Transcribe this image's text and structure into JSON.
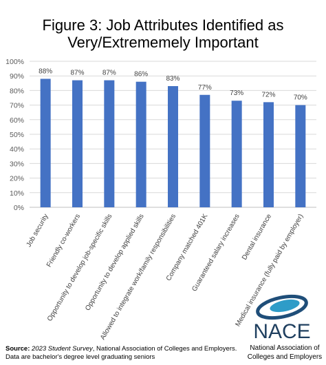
{
  "chart_data": {
    "type": "bar",
    "title_lines": [
      "Figure 3: Job Attributes Identified as",
      "Very/Extrememely Important"
    ],
    "categories": [
      "Job security",
      "Friendly co-workers",
      "Opportunity to develop job-specific skills",
      "Opportunity to develop applied skills",
      "Allowed to integrate work/family responsibilities",
      "Company matched 401K",
      "Guaranteed salary increases",
      "Dental insurance",
      "Medical insurance (fully paid by employer)"
    ],
    "values": [
      88,
      87,
      87,
      86,
      83,
      77,
      73,
      72,
      70
    ],
    "value_labels": [
      "88%",
      "87%",
      "87%",
      "86%",
      "83%",
      "77%",
      "73%",
      "72%",
      "70%"
    ],
    "color": "#4472c4",
    "ylim": [
      0,
      100
    ],
    "yticks": [
      {
        "value": 0,
        "label": "0%"
      },
      {
        "value": 10,
        "label": "10%"
      },
      {
        "value": 20,
        "label": "20%"
      },
      {
        "value": 30,
        "label": "30%"
      },
      {
        "value": 40,
        "label": "40%"
      },
      {
        "value": 50,
        "label": "50%"
      },
      {
        "value": 60,
        "label": "60%"
      },
      {
        "value": 70,
        "label": "70%"
      },
      {
        "value": 80,
        "label": "80%"
      },
      {
        "value": 90,
        "label": "90%"
      },
      {
        "value": 100,
        "label": "100%"
      }
    ],
    "grid": true
  },
  "footer": {
    "source_label": "Source:",
    "source_survey": "2023 Student Survey",
    "source_rest": ", National Association of Colleges and Employers.",
    "source_line2": "Data are bachelor's degree level graduating seniors"
  },
  "logo": {
    "name": "NACE",
    "line1": "National Association of",
    "line2": "Colleges and Employers"
  }
}
